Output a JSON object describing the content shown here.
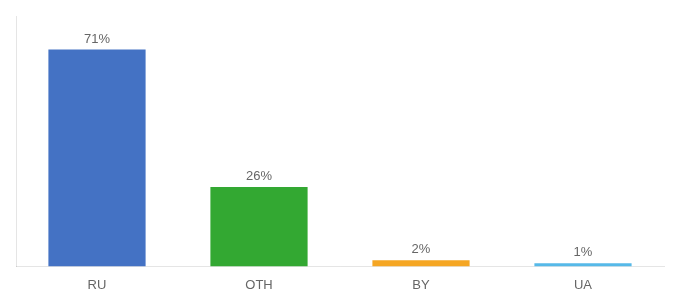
{
  "chart_data": {
    "type": "bar",
    "categories": [
      "RU",
      "OTH",
      "BY",
      "UA"
    ],
    "values": [
      71,
      26,
      2,
      1
    ],
    "value_labels": [
      "71%",
      "26%",
      "2%",
      "1%"
    ],
    "colors": [
      "#4472c4",
      "#33a832",
      "#f5a623",
      "#56b9e8"
    ],
    "ylim": [
      0,
      82
    ],
    "data_labels": true,
    "tick_labels": "x",
    "grid": false
  }
}
